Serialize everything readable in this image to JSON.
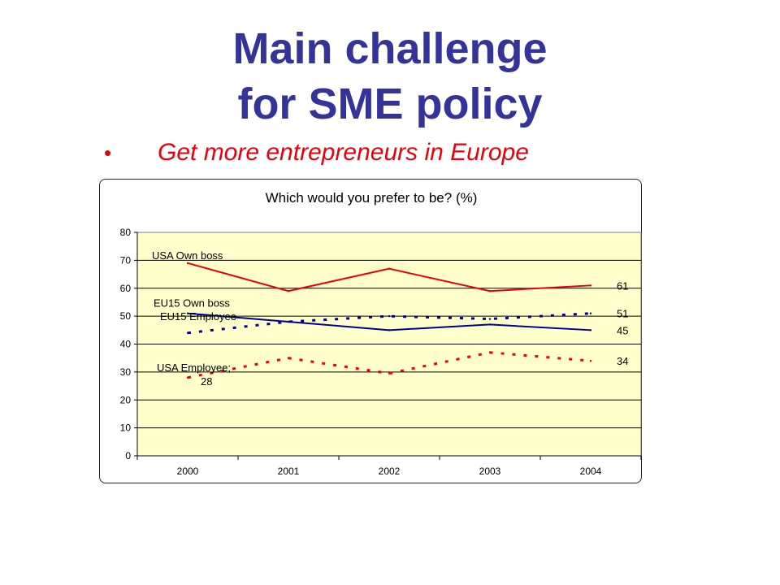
{
  "slide": {
    "title_line1": "Main challenge",
    "title_line2": "for SME policy",
    "bullet_symbol": "•",
    "bullet_text": "Get more entrepreneurs in Europe"
  },
  "chart_data": {
    "type": "line",
    "title": "Which would you prefer to be? (%)",
    "categories": [
      "2000",
      "2001",
      "2002",
      "2003",
      "2004"
    ],
    "ylim": [
      0,
      80
    ],
    "yticks": [
      0,
      10,
      20,
      30,
      40,
      50,
      60,
      70,
      80
    ],
    "grid": true,
    "plot_background": "#ffffcc",
    "series": [
      {
        "name": "USA Own boss",
        "values": [
          69,
          59,
          67,
          59,
          61
        ],
        "color": "#e8000b",
        "style": "solid",
        "end_label": "61"
      },
      {
        "name": "EU15 Own boss",
        "values": [
          51,
          48,
          45,
          47,
          45
        ],
        "color": "#000099",
        "style": "solid",
        "end_label": "45"
      },
      {
        "name": "EU15 Employee",
        "values": [
          44,
          48,
          50,
          49,
          51
        ],
        "color": "#000099",
        "style": "dashed",
        "end_label": "51"
      },
      {
        "name": "USA Employee; 28",
        "values": [
          28,
          35,
          29.5,
          37,
          34
        ],
        "color": "#e8000b",
        "style": "dashed",
        "end_label": "34"
      }
    ],
    "annotations": [
      "USA Own boss",
      "EU15 Own boss",
      "EU15 Employee",
      "USA Employee;",
      "28"
    ]
  }
}
